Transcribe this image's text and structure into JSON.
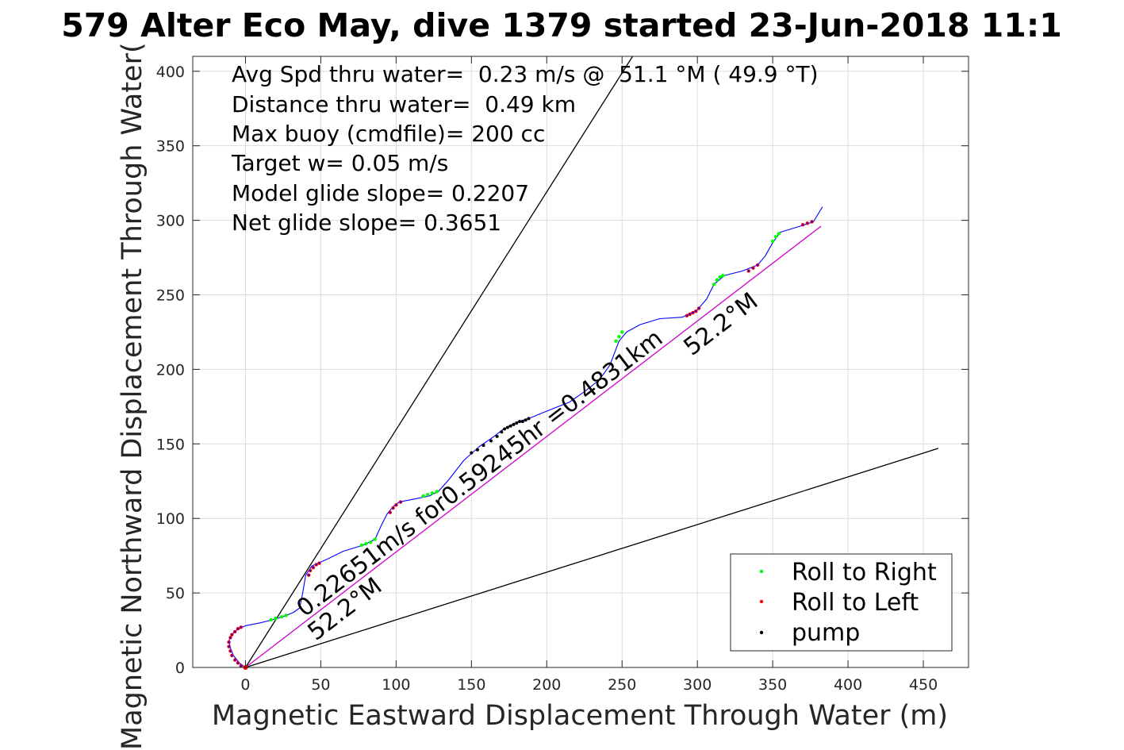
{
  "chart_data": {
    "type": "scatter",
    "title": "579 Alter Eco May, dive 1379 started 23-Jun-2018 11:1",
    "xlabel": "Magnetic Eastward Displacement Through Water (m)",
    "ylabel": "Magnetic Northward Displacement Through Water(",
    "xlim": [
      -35,
      480
    ],
    "ylim": [
      0,
      410
    ],
    "x_ticks": [
      0,
      50,
      100,
      150,
      200,
      250,
      300,
      350,
      400,
      450
    ],
    "y_ticks": [
      0,
      50,
      100,
      150,
      200,
      250,
      300,
      350,
      400
    ],
    "grid": true,
    "legend_position": "bottom-right",
    "stats": [
      "Avg Spd thru water=  0.23 m/s @  51.1 °M ( 49.9 °T)",
      "Distance thru water=  0.49 km",
      "Max buoy (cmdfile)= 200 cc",
      "Target w= 0.05 m/s",
      "Model glide slope= 0.2207",
      "Net glide slope= 0.3651"
    ],
    "annotations": {
      "speed_text": "0.22651m/s for0.59245hr =0.4831km",
      "heading_near": "52.2°M",
      "heading_far": "52.2°M"
    },
    "legend": [
      {
        "label": "Roll to Right",
        "color": "#00ff00"
      },
      {
        "label": "Roll to Left",
        "color": "#ff0000"
      },
      {
        "label": "pump",
        "color": "#000000"
      }
    ],
    "reference_lines": [
      {
        "color": "#000000",
        "points": [
          [
            0,
            0
          ],
          [
            257,
            410
          ]
        ]
      },
      {
        "color": "#000000",
        "points": [
          [
            0,
            0
          ],
          [
            460,
            147
          ]
        ]
      },
      {
        "color": "#cc00cc",
        "points": [
          [
            0,
            0
          ],
          [
            382,
            296
          ]
        ]
      }
    ],
    "track": {
      "color": "#0000ff",
      "points": [
        [
          0,
          0
        ],
        [
          -4,
          3
        ],
        [
          -8,
          8
        ],
        [
          -10,
          13
        ],
        [
          -11,
          18
        ],
        [
          -9,
          22
        ],
        [
          -6,
          25
        ],
        [
          -2,
          27
        ],
        [
          0,
          28
        ],
        [
          10,
          30
        ],
        [
          18,
          32
        ],
        [
          25,
          34
        ],
        [
          32,
          37
        ],
        [
          36,
          40
        ],
        [
          38,
          50
        ],
        [
          40,
          62
        ],
        [
          44,
          68
        ],
        [
          55,
          73
        ],
        [
          65,
          78
        ],
        [
          78,
          82
        ],
        [
          86,
          86
        ],
        [
          90,
          95
        ],
        [
          94,
          103
        ],
        [
          98,
          108
        ],
        [
          102,
          111
        ],
        [
          112,
          113
        ],
        [
          122,
          115
        ],
        [
          128,
          118
        ],
        [
          135,
          126
        ],
        [
          145,
          139
        ],
        [
          155,
          148
        ],
        [
          165,
          155
        ],
        [
          170,
          159
        ],
        [
          175,
          162
        ],
        [
          181,
          165
        ],
        [
          188,
          167
        ],
        [
          200,
          172
        ],
        [
          215,
          178
        ],
        [
          225,
          185
        ],
        [
          235,
          193
        ],
        [
          242,
          203
        ],
        [
          248,
          219
        ],
        [
          253,
          225
        ],
        [
          262,
          230
        ],
        [
          275,
          234
        ],
        [
          290,
          235
        ],
        [
          300,
          240
        ],
        [
          306,
          247
        ],
        [
          311,
          257
        ],
        [
          318,
          263
        ],
        [
          330,
          266
        ],
        [
          340,
          270
        ],
        [
          345,
          276
        ],
        [
          350,
          285
        ],
        [
          355,
          292
        ],
        [
          368,
          296
        ],
        [
          377,
          299
        ],
        [
          380,
          304
        ],
        [
          383,
          309
        ]
      ]
    },
    "roll_right_points": [
      [
        17,
        32
      ],
      [
        20,
        33
      ],
      [
        24,
        34
      ],
      [
        27,
        35
      ],
      [
        77,
        82
      ],
      [
        80,
        83
      ],
      [
        83,
        84
      ],
      [
        86,
        86
      ],
      [
        118,
        115
      ],
      [
        121,
        116
      ],
      [
        124,
        117
      ],
      [
        127,
        118
      ],
      [
        246,
        219
      ],
      [
        248,
        222
      ],
      [
        250,
        225
      ],
      [
        311,
        257
      ],
      [
        313,
        260
      ],
      [
        315,
        262
      ],
      [
        317,
        263
      ],
      [
        350,
        286
      ],
      [
        352,
        289
      ],
      [
        354,
        291
      ]
    ],
    "roll_left_points": [
      [
        -3,
        1
      ],
      [
        -5,
        3
      ],
      [
        -7,
        5
      ],
      [
        -9,
        8
      ],
      [
        -10,
        11
      ],
      [
        -11,
        14
      ],
      [
        -11,
        17
      ],
      [
        -10,
        20
      ],
      [
        -9,
        22
      ],
      [
        -7,
        24
      ],
      [
        -5,
        26
      ],
      [
        -3,
        27
      ],
      [
        42,
        62
      ],
      [
        43,
        65
      ],
      [
        45,
        67
      ],
      [
        47,
        69
      ],
      [
        49,
        70
      ],
      [
        96,
        104
      ],
      [
        98,
        107
      ],
      [
        100,
        109
      ],
      [
        103,
        111
      ],
      [
        293,
        236
      ],
      [
        295,
        237
      ],
      [
        297,
        238
      ],
      [
        299,
        239
      ],
      [
        301,
        241
      ],
      [
        334,
        266
      ],
      [
        337,
        268
      ],
      [
        340,
        270
      ],
      [
        370,
        297
      ],
      [
        373,
        298
      ],
      [
        376,
        299
      ]
    ],
    "pump_points": [
      [
        0,
        0
      ],
      [
        150,
        144
      ],
      [
        154,
        146
      ],
      [
        158,
        149
      ],
      [
        163,
        152
      ],
      [
        167,
        155
      ],
      [
        170,
        158
      ],
      [
        172,
        160
      ],
      [
        174,
        161
      ],
      [
        176,
        162
      ],
      [
        178,
        163
      ],
      [
        180,
        164
      ],
      [
        182,
        165
      ],
      [
        184,
        165
      ],
      [
        186,
        166
      ],
      [
        188,
        167
      ]
    ]
  }
}
